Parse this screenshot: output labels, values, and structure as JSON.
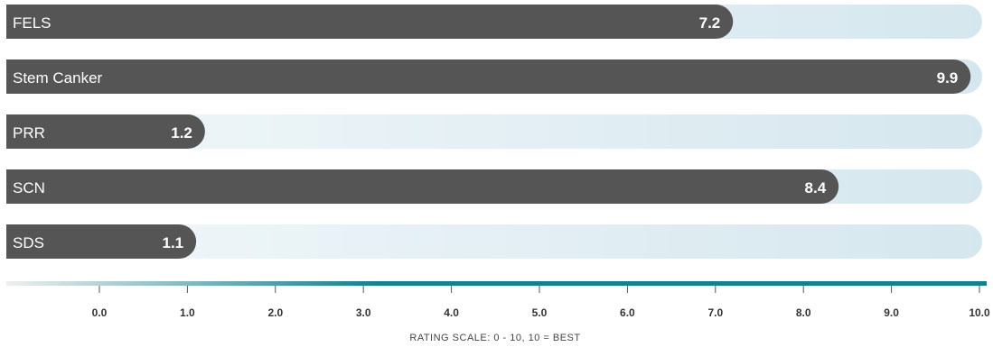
{
  "chart_data": {
    "type": "bar",
    "orientation": "horizontal",
    "categories": [
      "FELS",
      "Stem Canker",
      "PRR",
      "SCN",
      "SDS"
    ],
    "values": [
      7.2,
      9.9,
      1.2,
      8.4,
      1.1
    ],
    "value_labels": [
      "7.2",
      "9.9",
      "1.2",
      "8.4",
      "1.1"
    ],
    "xlim": [
      0,
      10
    ],
    "ticks": [
      0,
      1,
      2,
      3,
      4,
      5,
      6,
      7,
      8,
      9,
      10
    ],
    "tick_labels": [
      "0.0",
      "1.0",
      "2.0",
      "3.0",
      "4.0",
      "5.0",
      "6.0",
      "7.0",
      "8.0",
      "9.0",
      "10.0"
    ],
    "xlabel": "RATING SCALE: 0 - 10, 10 = BEST",
    "title": "",
    "grid": false,
    "colors": {
      "bar": "#555555",
      "track_start": "#f3f8fa",
      "track_end": "#d5e7ee",
      "axis_start": "#eeeeee",
      "axis_end": "#13808c",
      "bar_text": "#ffffff",
      "tick_text": "#333333"
    }
  }
}
